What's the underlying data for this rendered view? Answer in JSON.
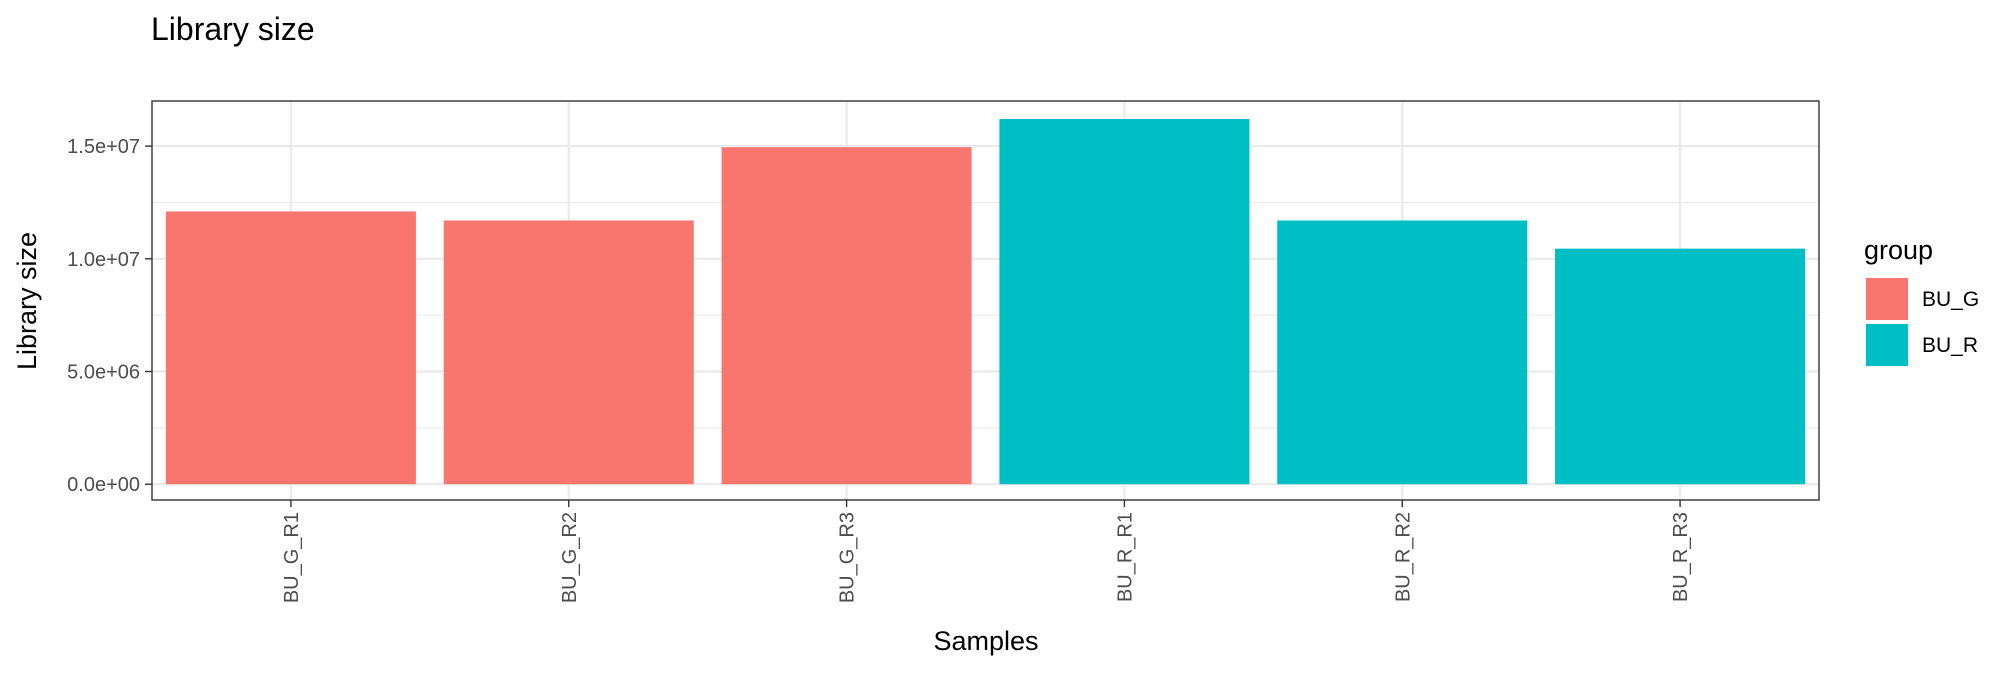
{
  "chart_data": {
    "type": "bar",
    "title": "Library size",
    "xlabel": "Samples",
    "ylabel": "Library size",
    "categories": [
      "BU_G_R1",
      "BU_G_R2",
      "BU_G_R3",
      "BU_R_R1",
      "BU_R_R2",
      "BU_R_R3"
    ],
    "values": [
      12100000,
      11700000,
      14950000,
      16200000,
      11700000,
      10450000
    ],
    "group_of_bar": [
      "BU_G",
      "BU_G",
      "BU_G",
      "BU_R",
      "BU_R",
      "BU_R"
    ],
    "ylim": [
      -700000,
      17000000
    ],
    "yticks": [
      0,
      5000000,
      10000000,
      15000000
    ],
    "ytick_labels": [
      "0.0e+00",
      "5.0e+06",
      "1.0e+07",
      "1.5e+07"
    ],
    "grid": true,
    "legend": {
      "title": "group",
      "position": "right",
      "entries": [
        {
          "label": "BU_G",
          "color": "#F8766D"
        },
        {
          "label": "BU_R",
          "color": "#00BFC4"
        }
      ]
    }
  }
}
